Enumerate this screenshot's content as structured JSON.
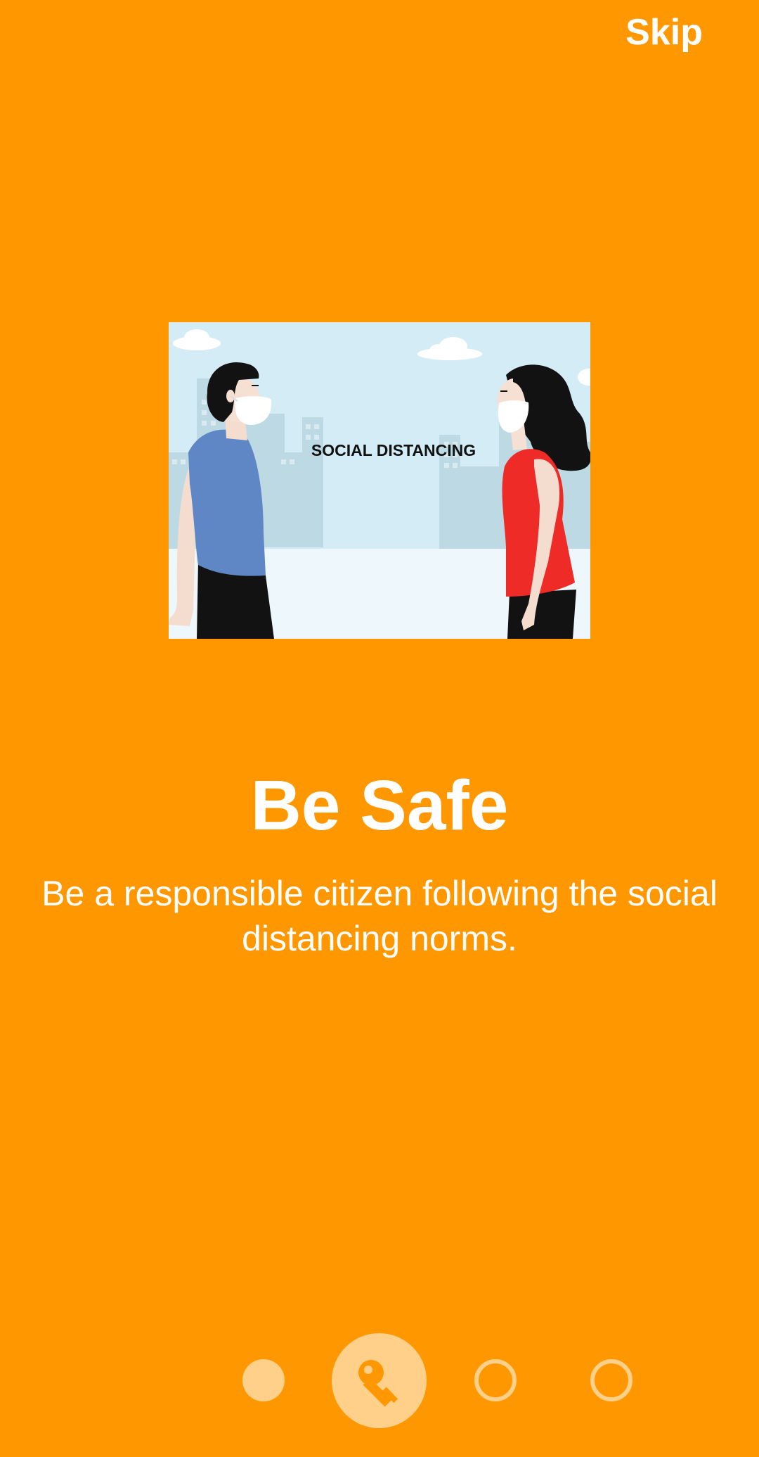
{
  "header": {
    "skip_label": "Skip"
  },
  "illustration": {
    "caption": "SOCIAL DISTANCING"
  },
  "content": {
    "title": "Be Safe",
    "description": "Be a responsible citizen following the social distancing norms."
  },
  "pager": {
    "page_count": 4,
    "current_page": 2,
    "active_icon": "key-icon"
  },
  "colors": {
    "background": "#FF9800",
    "text": "#FFFFFF",
    "indicator": "#FFD08A"
  }
}
